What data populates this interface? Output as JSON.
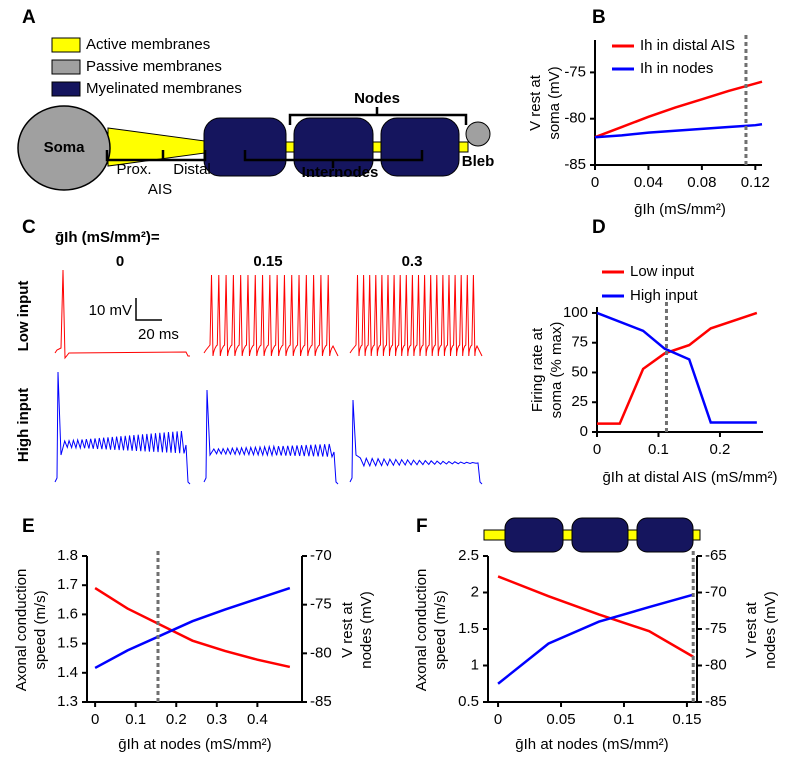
{
  "panel_labels": [
    "A",
    "B",
    "C",
    "D",
    "E",
    "F"
  ],
  "diagram": {
    "legend": [
      {
        "label": "Active membranes",
        "color": "#ffff00"
      },
      {
        "label": "Passive membranes",
        "color": "#a0a0a0"
      },
      {
        "label": "Myelinated membranes",
        "color": "#15155e"
      }
    ],
    "soma": "Soma",
    "prox": "Prox.",
    "distal": "Distal",
    "ais": "AIS",
    "nodes": "Nodes",
    "internodes": "Internodes",
    "bleb": "Bleb"
  },
  "traces": {
    "header": "ḡIh (mS/mm²)=",
    "conditions": [
      "0",
      "0.15",
      "0.3"
    ],
    "rows": [
      "Low input",
      "High input"
    ],
    "scale_v": "10 mV",
    "scale_t": "20 ms"
  },
  "chart_data": [
    {
      "type": "line",
      "xlabel": "ḡIh (mS/mm²)",
      "ylabel": [
        "V rest at",
        "soma (mV)"
      ],
      "xlim": [
        0,
        0.125
      ],
      "xticks": [
        0,
        0.04,
        0.08,
        0.12
      ],
      "ylim": [
        -85,
        -71.5
      ],
      "yticks": [
        -85,
        -80,
        -75
      ],
      "vline": 0.113,
      "legend": "top",
      "series": [
        {
          "name": "Ih in distal AIS",
          "color": "#ff0000",
          "x": [
            0,
            0.02,
            0.04,
            0.06,
            0.08,
            0.1,
            0.12,
            0.125
          ],
          "values": [
            -82,
            -80.9,
            -79.8,
            -78.8,
            -77.9,
            -77,
            -76.2,
            -76
          ]
        },
        {
          "name": "Ih in nodes",
          "color": "#0000ff",
          "x": [
            0,
            0.02,
            0.04,
            0.06,
            0.08,
            0.1,
            0.12,
            0.125
          ],
          "values": [
            -82,
            -81.8,
            -81.5,
            -81.3,
            -81.1,
            -80.9,
            -80.7,
            -80.6
          ]
        }
      ]
    },
    {
      "type": "line",
      "xlabel": "ḡIh at distal AIS (mS/mm²)",
      "ylabel": [
        "Firing rate at",
        "soma (% max)"
      ],
      "xlim": [
        0,
        0.27
      ],
      "xticks": [
        0,
        0.1,
        0.2
      ],
      "ylim": [
        0,
        105
      ],
      "yticks": [
        0,
        25,
        50,
        75,
        100
      ],
      "vline": 0.113,
      "legend": "top",
      "series": [
        {
          "name": "Low input",
          "color": "#ff0000",
          "x": [
            0,
            0.037,
            0.075,
            0.11,
            0.15,
            0.185,
            0.26
          ],
          "values": [
            7,
            7,
            53,
            66,
            73,
            87,
            100
          ]
        },
        {
          "name": "High input",
          "color": "#0000ff",
          "x": [
            0,
            0.075,
            0.11,
            0.15,
            0.185,
            0.26
          ],
          "values": [
            100,
            85,
            70,
            61,
            8,
            8
          ]
        }
      ]
    },
    {
      "type": "line",
      "xlabel": "ḡIh at nodes (mS/mm²)",
      "ylabel": [
        "Axonal conduction",
        "speed (m/s)"
      ],
      "y2label": [
        "V rest at",
        "nodes (mV)"
      ],
      "xlim": [
        -0.02,
        0.51
      ],
      "xticks": [
        0,
        0.1,
        0.2,
        0.3,
        0.4
      ],
      "ylim": [
        1.3,
        1.8
      ],
      "yticks": [
        1.3,
        1.4,
        1.5,
        1.6,
        1.7,
        1.8
      ],
      "y2lim": [
        -85,
        -70
      ],
      "y2ticks": [
        -85,
        -80,
        -75,
        -70
      ],
      "vline": 0.155,
      "series": [
        {
          "name": "Axonal conduction speed",
          "color": "#ff0000",
          "x": [
            0,
            0.08,
            0.16,
            0.24,
            0.32,
            0.4,
            0.48
          ],
          "values": [
            1.69,
            1.62,
            1.565,
            1.51,
            1.475,
            1.445,
            1.42
          ]
        },
        {
          "name": "V rest at nodes",
          "color": "#0000ff",
          "axis": "y2",
          "x": [
            0,
            0.08,
            0.16,
            0.24,
            0.32,
            0.4,
            0.48
          ],
          "values": [
            -81.5,
            -79.7,
            -78.2,
            -76.7,
            -75.5,
            -74.4,
            -73.3
          ]
        }
      ]
    },
    {
      "type": "line",
      "xlabel": "ḡIh at nodes (mS/mm²)",
      "ylabel": [
        "Axonal conduction",
        "speed (m/s)"
      ],
      "y2label": [
        "V rest at",
        "nodes (mV)"
      ],
      "xlim": [
        -0.008,
        0.158
      ],
      "xticks": [
        0,
        0.05,
        0.1,
        0.15
      ],
      "ylim": [
        0.5,
        2.5
      ],
      "yticks": [
        0.5,
        1,
        1.5,
        2,
        2.5
      ],
      "y2lim": [
        -85,
        -65
      ],
      "y2ticks": [
        -85,
        -80,
        -75,
        -70,
        -65
      ],
      "vline": 0.155,
      "series": [
        {
          "name": "Axonal conduction speed",
          "color": "#ff0000",
          "x": [
            0,
            0.04,
            0.08,
            0.12,
            0.155
          ],
          "values": [
            2.22,
            1.95,
            1.7,
            1.47,
            1.12
          ]
        },
        {
          "name": "V rest at nodes",
          "color": "#0000ff",
          "axis": "y2",
          "x": [
            0,
            0.04,
            0.08,
            0.12,
            0.155
          ],
          "values": [
            -82.5,
            -77,
            -74,
            -72,
            -70.3
          ]
        }
      ]
    }
  ]
}
